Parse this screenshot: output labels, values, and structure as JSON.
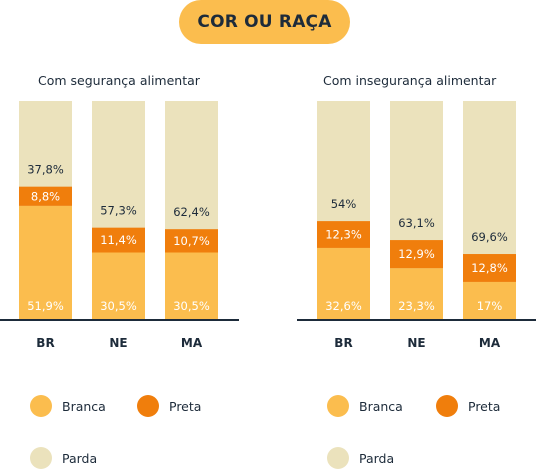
{
  "header": {
    "title": "COR OU RAÇA"
  },
  "colors": {
    "branca": "#fbbd4e",
    "preta": "#f07e0c",
    "parda": "#ebe2bc",
    "axis": "#1d2b3a",
    "pill": "#fbbd4e"
  },
  "legend": [
    {
      "key": "branca",
      "label": "Branca"
    },
    {
      "key": "preta",
      "label": "Preta"
    },
    {
      "key": "parda",
      "label": "Parda"
    }
  ],
  "chart_data": [
    {
      "type": "bar",
      "stacked": true,
      "title": "Com segurança alimentar",
      "categories": [
        "BR",
        "NE",
        "MA"
      ],
      "series": [
        {
          "name": "Branca",
          "values": [
            51.9,
            30.5,
            30.5
          ],
          "labels": [
            "51,9%",
            "30,5%",
            "30,5%"
          ]
        },
        {
          "name": "Preta",
          "values": [
            8.8,
            11.4,
            10.7
          ],
          "labels": [
            "8,8%",
            "11,4%",
            "10,7%"
          ]
        },
        {
          "name": "Parda",
          "values": [
            37.8,
            57.3,
            62.4
          ],
          "labels": [
            "37,8%",
            "57,3%",
            "62,4%"
          ]
        }
      ]
    },
    {
      "type": "bar",
      "stacked": true,
      "title": "Com insegurança alimentar",
      "categories": [
        "BR",
        "NE",
        "MA"
      ],
      "series": [
        {
          "name": "Branca",
          "values": [
            32.6,
            23.3,
            17
          ],
          "labels": [
            "32,6%",
            "23,3%",
            "17%"
          ]
        },
        {
          "name": "Preta",
          "values": [
            12.3,
            12.9,
            12.8
          ],
          "labels": [
            "12,3%",
            "12,9%",
            "12,8%"
          ]
        },
        {
          "name": "Parda",
          "values": [
            54,
            63.1,
            69.6
          ],
          "labels": [
            "54%",
            "63,1%",
            "69,6%"
          ]
        }
      ]
    }
  ]
}
